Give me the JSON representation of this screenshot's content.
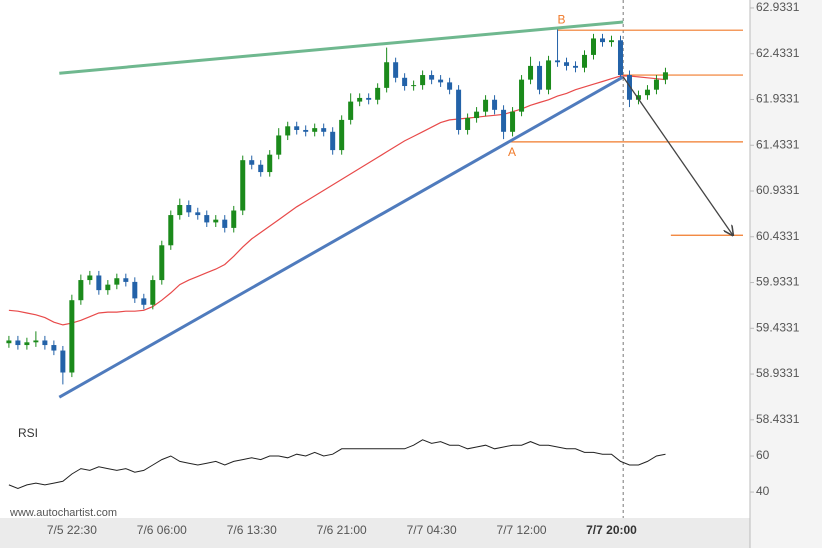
{
  "chart_data": {
    "type": "candlestick",
    "watermark": "www.autochartist.com",
    "categories": [
      null,
      null,
      null,
      null,
      null,
      null,
      null,
      "7/5 22:30",
      null,
      null,
      null,
      null,
      null,
      null,
      null,
      null,
      null,
      "7/6 06:00",
      null,
      null,
      null,
      null,
      null,
      null,
      null,
      null,
      null,
      "7/6 13:30",
      null,
      null,
      null,
      null,
      null,
      null,
      null,
      null,
      null,
      "7/6 21:00",
      null,
      null,
      null,
      null,
      null,
      null,
      null,
      null,
      null,
      "7/7 04:30",
      null,
      null,
      null,
      null,
      null,
      null,
      null,
      null,
      null,
      "7/7 12:00",
      null,
      null,
      null,
      null,
      null,
      null,
      null,
      null,
      null,
      "7/7 20:00",
      null,
      null,
      null,
      null,
      null,
      null
    ],
    "open": [
      59.27,
      59.3,
      59.25,
      59.28,
      59.3,
      59.25,
      59.19,
      58.95,
      59.74,
      59.96,
      60.01,
      59.85,
      59.91,
      59.98,
      59.94,
      59.76,
      59.69,
      59.96,
      60.34,
      60.67,
      60.78,
      60.7,
      60.67,
      60.59,
      60.62,
      60.53,
      60.72,
      61.27,
      61.22,
      61.14,
      61.33,
      61.54,
      61.64,
      61.6,
      61.58,
      61.62,
      61.58,
      61.38,
      61.71,
      61.91,
      61.95,
      61.93,
      62.06,
      62.34,
      62.17,
      62.08,
      62.09,
      62.2,
      62.15,
      62.12,
      62.04,
      61.6,
      61.73,
      61.8,
      61.93,
      61.82,
      61.58,
      61.8,
      62.15,
      62.3,
      62.04,
      62.36,
      62.34,
      62.3,
      62.28,
      62.42,
      62.6,
      62.56,
      62.58,
      62.2,
      61.93,
      61.98,
      62.04,
      62.15
    ],
    "high": [
      59.35,
      59.35,
      59.33,
      59.4,
      59.35,
      59.3,
      59.24,
      59.8,
      60.02,
      60.06,
      60.06,
      59.96,
      60.03,
      60.03,
      59.99,
      59.81,
      60.01,
      60.39,
      60.72,
      60.85,
      60.83,
      60.75,
      60.72,
      60.67,
      60.67,
      60.77,
      61.32,
      61.32,
      61.27,
      61.38,
      61.62,
      61.69,
      61.69,
      61.65,
      61.67,
      61.67,
      61.63,
      61.76,
      62.0,
      62.0,
      62.0,
      62.11,
      62.5,
      62.39,
      62.22,
      62.14,
      62.25,
      62.25,
      62.2,
      62.17,
      62.09,
      61.78,
      61.85,
      61.98,
      61.98,
      61.87,
      61.85,
      62.2,
      62.4,
      62.35,
      62.41,
      62.7,
      62.39,
      62.35,
      62.47,
      62.65,
      62.65,
      62.63,
      62.63,
      62.25,
      62.03,
      62.09,
      62.2,
      62.28
    ],
    "low": [
      59.22,
      59.2,
      59.2,
      59.23,
      59.2,
      59.14,
      58.82,
      58.9,
      59.69,
      59.91,
      59.8,
      59.8,
      59.86,
      59.89,
      59.71,
      59.64,
      59.64,
      59.91,
      60.29,
      60.62,
      60.65,
      60.62,
      60.54,
      60.54,
      60.48,
      60.48,
      60.67,
      61.17,
      61.09,
      61.09,
      61.28,
      61.49,
      61.55,
      61.53,
      61.53,
      61.53,
      61.33,
      61.33,
      61.66,
      61.86,
      61.88,
      61.88,
      62.01,
      62.12,
      62.03,
      62.03,
      62.04,
      62.1,
      62.07,
      61.99,
      61.55,
      61.55,
      61.68,
      61.75,
      61.77,
      61.5,
      61.53,
      61.75,
      62.1,
      61.99,
      61.99,
      62.29,
      62.25,
      62.23,
      62.23,
      62.37,
      62.51,
      62.51,
      62.15,
      61.85,
      61.88,
      61.93,
      61.99,
      62.1
    ],
    "close": [
      59.3,
      59.25,
      59.28,
      59.3,
      59.25,
      59.19,
      58.95,
      59.74,
      59.96,
      60.01,
      59.85,
      59.91,
      59.98,
      59.94,
      59.76,
      59.69,
      59.96,
      60.34,
      60.67,
      60.78,
      60.7,
      60.67,
      60.59,
      60.62,
      60.53,
      60.72,
      61.27,
      61.22,
      61.14,
      61.33,
      61.54,
      61.64,
      61.6,
      61.58,
      61.62,
      61.58,
      61.38,
      61.71,
      61.91,
      61.95,
      61.93,
      62.06,
      62.34,
      62.17,
      62.08,
      62.09,
      62.2,
      62.15,
      62.12,
      62.04,
      61.6,
      61.73,
      61.8,
      61.93,
      61.82,
      61.58,
      61.8,
      62.15,
      62.3,
      62.04,
      62.36,
      62.34,
      62.3,
      62.28,
      62.42,
      62.6,
      62.56,
      62.58,
      62.2,
      61.93,
      61.98,
      62.04,
      62.15,
      62.23
    ],
    "up_color": "#1b8a1b",
    "down_color": "#2362a8",
    "xlim": [
      -0.1,
      82.4
    ],
    "ylim": [
      58.3,
      63.02
    ],
    "yticks": [
      62.9331,
      62.4331,
      61.9331,
      61.4331,
      60.9331,
      60.4331,
      59.9331,
      59.4331,
      58.9331,
      58.4331
    ],
    "ma": {
      "color": "#e84a4a",
      "values": [
        59.63,
        59.62,
        59.6,
        59.58,
        59.55,
        59.5,
        59.47,
        59.49,
        59.52,
        59.56,
        59.6,
        59.61,
        59.61,
        59.62,
        59.62,
        59.63,
        59.67,
        59.74,
        59.82,
        59.91,
        59.96,
        60.0,
        60.04,
        60.08,
        60.13,
        60.22,
        60.32,
        60.41,
        60.48,
        60.55,
        60.62,
        60.69,
        60.76,
        60.82,
        60.88,
        60.94,
        61.0,
        61.06,
        61.12,
        61.18,
        61.24,
        61.3,
        61.36,
        61.42,
        61.48,
        61.53,
        61.58,
        61.63,
        61.68,
        61.71,
        61.72,
        61.73,
        61.74,
        61.75,
        61.76,
        61.77,
        61.8,
        61.83,
        61.87,
        61.9,
        61.93,
        61.97,
        62.0,
        62.04,
        62.07,
        62.1,
        62.13,
        62.16,
        62.19,
        62.19,
        62.18,
        62.17,
        62.16,
        62.15
      ]
    },
    "rsi": {
      "label": "RSI",
      "color": "#222222",
      "ylim": [
        25.6,
        80
      ],
      "yticks": [
        60,
        40
      ],
      "values": [
        44,
        42,
        44,
        45,
        44,
        45,
        46,
        50,
        53,
        52,
        54,
        53,
        52,
        53,
        51,
        52,
        55,
        58,
        60,
        57,
        56,
        55,
        56,
        57,
        55,
        57,
        58,
        59,
        58,
        60,
        60,
        59,
        61,
        60,
        62,
        60,
        61,
        64,
        64,
        64,
        64,
        64,
        64,
        64,
        64,
        66,
        69,
        67,
        68,
        66,
        66,
        64,
        65,
        66,
        64,
        65,
        66,
        66,
        68,
        66,
        66,
        65,
        64,
        64,
        62,
        62,
        61,
        61,
        57,
        55,
        55,
        57,
        60,
        61
      ]
    },
    "pattern": {
      "resistance": {
        "color": "#6fb88f",
        "x": [
          5.6,
          68.3
        ],
        "values": [
          62.22,
          62.78
        ]
      },
      "support": {
        "color": "#4f7bbd",
        "x": [
          5.6,
          68.3
        ],
        "values": [
          58.68,
          62.18
        ]
      },
      "forecast": {
        "color": "#444444",
        "x": [
          68.3,
          80.5
        ],
        "values": [
          62.18,
          60.45
        ]
      },
      "level_color": "#f07a2a",
      "levels": [
        {
          "label": "B",
          "value": 62.69,
          "from": 61
        },
        {
          "value": 62.2,
          "from": 68.3
        },
        {
          "label": "A",
          "value": 61.47,
          "from": 55.5
        },
        {
          "value": 60.45,
          "from": 73.6
        }
      ]
    }
  }
}
